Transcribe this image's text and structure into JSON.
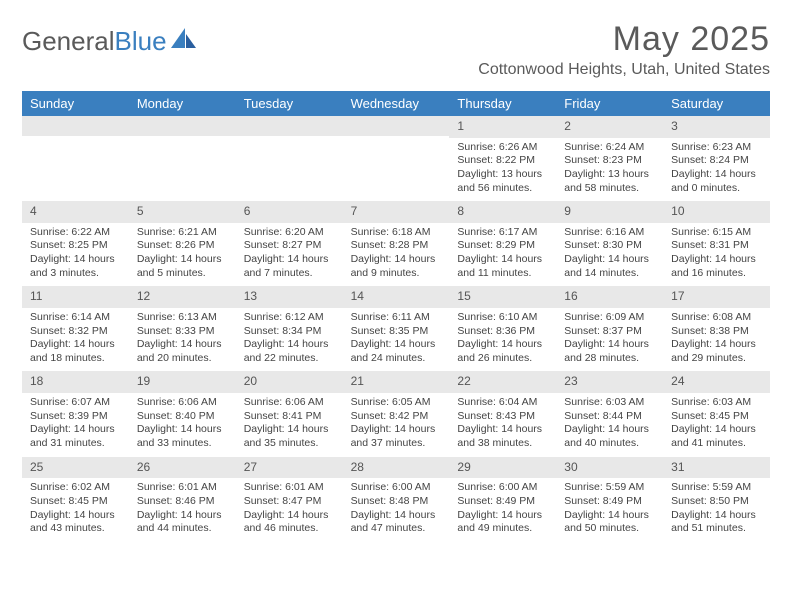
{
  "brand": {
    "part1": "General",
    "part2": "Blue"
  },
  "title": "May 2025",
  "location": "Cottonwood Heights, Utah, United States",
  "colors": {
    "header_bg": "#3a7fbf",
    "header_text": "#ffffff",
    "daynum_bg": "#e8e8e8",
    "text": "#444444",
    "title_text": "#5a5a5a"
  },
  "dayNames": [
    "Sunday",
    "Monday",
    "Tuesday",
    "Wednesday",
    "Thursday",
    "Friday",
    "Saturday"
  ],
  "weeks": [
    [
      {
        "n": "",
        "sr": "",
        "ss": "",
        "dl": ""
      },
      {
        "n": "",
        "sr": "",
        "ss": "",
        "dl": ""
      },
      {
        "n": "",
        "sr": "",
        "ss": "",
        "dl": ""
      },
      {
        "n": "",
        "sr": "",
        "ss": "",
        "dl": ""
      },
      {
        "n": "1",
        "sr": "Sunrise: 6:26 AM",
        "ss": "Sunset: 8:22 PM",
        "dl": "Daylight: 13 hours and 56 minutes."
      },
      {
        "n": "2",
        "sr": "Sunrise: 6:24 AM",
        "ss": "Sunset: 8:23 PM",
        "dl": "Daylight: 13 hours and 58 minutes."
      },
      {
        "n": "3",
        "sr": "Sunrise: 6:23 AM",
        "ss": "Sunset: 8:24 PM",
        "dl": "Daylight: 14 hours and 0 minutes."
      }
    ],
    [
      {
        "n": "4",
        "sr": "Sunrise: 6:22 AM",
        "ss": "Sunset: 8:25 PM",
        "dl": "Daylight: 14 hours and 3 minutes."
      },
      {
        "n": "5",
        "sr": "Sunrise: 6:21 AM",
        "ss": "Sunset: 8:26 PM",
        "dl": "Daylight: 14 hours and 5 minutes."
      },
      {
        "n": "6",
        "sr": "Sunrise: 6:20 AM",
        "ss": "Sunset: 8:27 PM",
        "dl": "Daylight: 14 hours and 7 minutes."
      },
      {
        "n": "7",
        "sr": "Sunrise: 6:18 AM",
        "ss": "Sunset: 8:28 PM",
        "dl": "Daylight: 14 hours and 9 minutes."
      },
      {
        "n": "8",
        "sr": "Sunrise: 6:17 AM",
        "ss": "Sunset: 8:29 PM",
        "dl": "Daylight: 14 hours and 11 minutes."
      },
      {
        "n": "9",
        "sr": "Sunrise: 6:16 AM",
        "ss": "Sunset: 8:30 PM",
        "dl": "Daylight: 14 hours and 14 minutes."
      },
      {
        "n": "10",
        "sr": "Sunrise: 6:15 AM",
        "ss": "Sunset: 8:31 PM",
        "dl": "Daylight: 14 hours and 16 minutes."
      }
    ],
    [
      {
        "n": "11",
        "sr": "Sunrise: 6:14 AM",
        "ss": "Sunset: 8:32 PM",
        "dl": "Daylight: 14 hours and 18 minutes."
      },
      {
        "n": "12",
        "sr": "Sunrise: 6:13 AM",
        "ss": "Sunset: 8:33 PM",
        "dl": "Daylight: 14 hours and 20 minutes."
      },
      {
        "n": "13",
        "sr": "Sunrise: 6:12 AM",
        "ss": "Sunset: 8:34 PM",
        "dl": "Daylight: 14 hours and 22 minutes."
      },
      {
        "n": "14",
        "sr": "Sunrise: 6:11 AM",
        "ss": "Sunset: 8:35 PM",
        "dl": "Daylight: 14 hours and 24 minutes."
      },
      {
        "n": "15",
        "sr": "Sunrise: 6:10 AM",
        "ss": "Sunset: 8:36 PM",
        "dl": "Daylight: 14 hours and 26 minutes."
      },
      {
        "n": "16",
        "sr": "Sunrise: 6:09 AM",
        "ss": "Sunset: 8:37 PM",
        "dl": "Daylight: 14 hours and 28 minutes."
      },
      {
        "n": "17",
        "sr": "Sunrise: 6:08 AM",
        "ss": "Sunset: 8:38 PM",
        "dl": "Daylight: 14 hours and 29 minutes."
      }
    ],
    [
      {
        "n": "18",
        "sr": "Sunrise: 6:07 AM",
        "ss": "Sunset: 8:39 PM",
        "dl": "Daylight: 14 hours and 31 minutes."
      },
      {
        "n": "19",
        "sr": "Sunrise: 6:06 AM",
        "ss": "Sunset: 8:40 PM",
        "dl": "Daylight: 14 hours and 33 minutes."
      },
      {
        "n": "20",
        "sr": "Sunrise: 6:06 AM",
        "ss": "Sunset: 8:41 PM",
        "dl": "Daylight: 14 hours and 35 minutes."
      },
      {
        "n": "21",
        "sr": "Sunrise: 6:05 AM",
        "ss": "Sunset: 8:42 PM",
        "dl": "Daylight: 14 hours and 37 minutes."
      },
      {
        "n": "22",
        "sr": "Sunrise: 6:04 AM",
        "ss": "Sunset: 8:43 PM",
        "dl": "Daylight: 14 hours and 38 minutes."
      },
      {
        "n": "23",
        "sr": "Sunrise: 6:03 AM",
        "ss": "Sunset: 8:44 PM",
        "dl": "Daylight: 14 hours and 40 minutes."
      },
      {
        "n": "24",
        "sr": "Sunrise: 6:03 AM",
        "ss": "Sunset: 8:45 PM",
        "dl": "Daylight: 14 hours and 41 minutes."
      }
    ],
    [
      {
        "n": "25",
        "sr": "Sunrise: 6:02 AM",
        "ss": "Sunset: 8:45 PM",
        "dl": "Daylight: 14 hours and 43 minutes."
      },
      {
        "n": "26",
        "sr": "Sunrise: 6:01 AM",
        "ss": "Sunset: 8:46 PM",
        "dl": "Daylight: 14 hours and 44 minutes."
      },
      {
        "n": "27",
        "sr": "Sunrise: 6:01 AM",
        "ss": "Sunset: 8:47 PM",
        "dl": "Daylight: 14 hours and 46 minutes."
      },
      {
        "n": "28",
        "sr": "Sunrise: 6:00 AM",
        "ss": "Sunset: 8:48 PM",
        "dl": "Daylight: 14 hours and 47 minutes."
      },
      {
        "n": "29",
        "sr": "Sunrise: 6:00 AM",
        "ss": "Sunset: 8:49 PM",
        "dl": "Daylight: 14 hours and 49 minutes."
      },
      {
        "n": "30",
        "sr": "Sunrise: 5:59 AM",
        "ss": "Sunset: 8:49 PM",
        "dl": "Daylight: 14 hours and 50 minutes."
      },
      {
        "n": "31",
        "sr": "Sunrise: 5:59 AM",
        "ss": "Sunset: 8:50 PM",
        "dl": "Daylight: 14 hours and 51 minutes."
      }
    ]
  ]
}
